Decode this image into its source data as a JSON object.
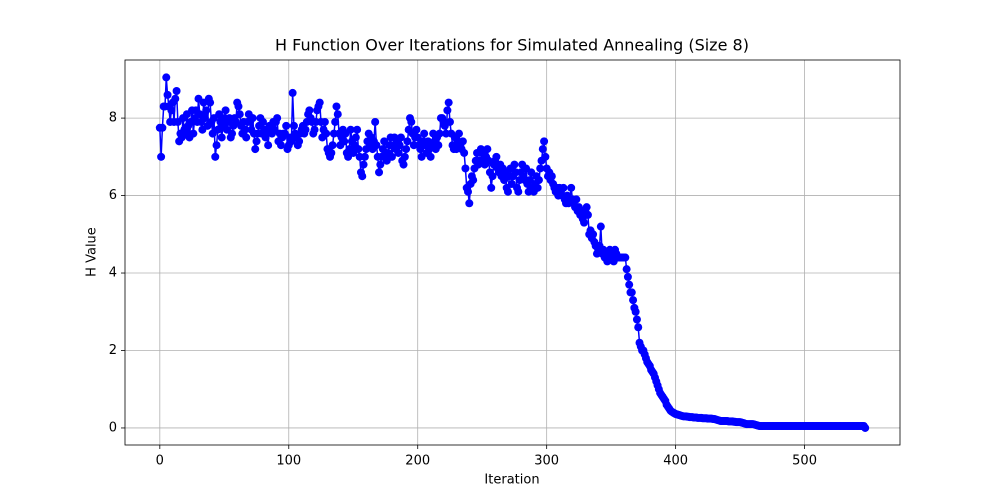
{
  "chart_data": {
    "type": "line",
    "title": "H Function Over Iterations for Simulated Annealing (Size 8)",
    "xlabel": "Iteration",
    "ylabel": "H Value",
    "xlim": [
      -27,
      574
    ],
    "ylim": [
      -0.44,
      9.5
    ],
    "xticks": [
      0,
      100,
      200,
      300,
      400,
      500
    ],
    "yticks": [
      0,
      2,
      4,
      6,
      8
    ],
    "grid": true,
    "marker": true,
    "series": [
      {
        "color": "#0000ff",
        "x": [
          0,
          1,
          2,
          3,
          4,
          5,
          6,
          7,
          8,
          9,
          10,
          11,
          12,
          13,
          14,
          15,
          16,
          17,
          18,
          19,
          20,
          21,
          22,
          23,
          24,
          25,
          26,
          27,
          28,
          29,
          30,
          31,
          32,
          33,
          34,
          35,
          36,
          37,
          38,
          39,
          40,
          41,
          42,
          43,
          44,
          45,
          46,
          47,
          48,
          49,
          50,
          51,
          52,
          53,
          54,
          55,
          56,
          57,
          58,
          59,
          60,
          61,
          62,
          63,
          64,
          65,
          66,
          67,
          68,
          69,
          70,
          71,
          72,
          73,
          74,
          75,
          76,
          77,
          78,
          79,
          80,
          81,
          82,
          83,
          84,
          85,
          86,
          87,
          88,
          89,
          90,
          91,
          92,
          93,
          94,
          95,
          96,
          97,
          98,
          99,
          100,
          101,
          102,
          103,
          104,
          105,
          106,
          107,
          108,
          109,
          110,
          111,
          112,
          113,
          114,
          115,
          116,
          117,
          118,
          119,
          120,
          121,
          122,
          123,
          124,
          125,
          126,
          127,
          128,
          129,
          130,
          131,
          132,
          133,
          134,
          135,
          136,
          137,
          138,
          139,
          140,
          141,
          142,
          143,
          144,
          145,
          146,
          147,
          148,
          149,
          150,
          151,
          152,
          153,
          154,
          155,
          156,
          157,
          158,
          159,
          160,
          161,
          162,
          163,
          164,
          165,
          166,
          167,
          168,
          169,
          170,
          171,
          172,
          173,
          174,
          175,
          176,
          177,
          178,
          179,
          180,
          181,
          182,
          183,
          184,
          185,
          186,
          187,
          188,
          189,
          190,
          191,
          192,
          193,
          194,
          195,
          196,
          197,
          198,
          199,
          200,
          201,
          202,
          203,
          204,
          205,
          206,
          207,
          208,
          209,
          210,
          211,
          212,
          213,
          214,
          215,
          216,
          217,
          218,
          219,
          220,
          221,
          222,
          223,
          224,
          225,
          226,
          227,
          228,
          229,
          230,
          231,
          232,
          233,
          234,
          235,
          236,
          237,
          238,
          239,
          240,
          241,
          242,
          243,
          244,
          245,
          246,
          247,
          248,
          249,
          250,
          251,
          252,
          253,
          254,
          255,
          256,
          257,
          258,
          259,
          260,
          261,
          262,
          263,
          264,
          265,
          266,
          267,
          268,
          269,
          270,
          271,
          272,
          273,
          274,
          275,
          276,
          277,
          278,
          279,
          280,
          281,
          282,
          283,
          284,
          285,
          286,
          287,
          288,
          289,
          290,
          291,
          292,
          293,
          294,
          295,
          296,
          297,
          298,
          299,
          300,
          301,
          302,
          303,
          304,
          305,
          306,
          307,
          308,
          309,
          310,
          311,
          312,
          313,
          314,
          315,
          316,
          317,
          318,
          319,
          320,
          321,
          322,
          323,
          324,
          325,
          326,
          327,
          328,
          329,
          330,
          331,
          332,
          333,
          334,
          335,
          336,
          337,
          338,
          339,
          340,
          341,
          342,
          343,
          344,
          345,
          346,
          347,
          348,
          349,
          350,
          351,
          352,
          353,
          354,
          355,
          356,
          357,
          358,
          359,
          360,
          361,
          362,
          363,
          364,
          365,
          366,
          367,
          368,
          369,
          370,
          371,
          372,
          373,
          374,
          375,
          376,
          377,
          378,
          379,
          380,
          381,
          382,
          383,
          384,
          385,
          386,
          387,
          388,
          389,
          390,
          391,
          392,
          393,
          394,
          395,
          396,
          397,
          398,
          399,
          400,
          401,
          402,
          403,
          404,
          405,
          406,
          407,
          408,
          409,
          410,
          411,
          412,
          413,
          414,
          415,
          416,
          417,
          418,
          419,
          420,
          421,
          422,
          423,
          424,
          425,
          426,
          427,
          428,
          429,
          430,
          431,
          432,
          433,
          434,
          435,
          436,
          437,
          438,
          439,
          440,
          441,
          442,
          443,
          444,
          445,
          446,
          447,
          448,
          449,
          450,
          451,
          452,
          453,
          454,
          455,
          456,
          457,
          458,
          459,
          460,
          461,
          462,
          463,
          464,
          465,
          466,
          467,
          468,
          469,
          470,
          471,
          472,
          473,
          474,
          475,
          476,
          477,
          478,
          479,
          480,
          481,
          482,
          483,
          484,
          485,
          486,
          487,
          488,
          489,
          490,
          491,
          492,
          493,
          494,
          495,
          496,
          497,
          498,
          499,
          500,
          501,
          502,
          503,
          504,
          505,
          506,
          507,
          508,
          509,
          510,
          511,
          512,
          513,
          514,
          515,
          516,
          517,
          518,
          519,
          520,
          521,
          522,
          523,
          524,
          525,
          526,
          527,
          528,
          529,
          530,
          531,
          532,
          533,
          534,
          535,
          536,
          537,
          538,
          539,
          540,
          541,
          542,
          543,
          544,
          545,
          546,
          547
        ],
        "values": [
          7.75,
          7.0,
          7.75,
          8.3,
          8.3,
          9.05,
          8.6,
          8.3,
          7.9,
          8.2,
          8.4,
          7.9,
          8.5,
          8.7,
          7.9,
          7.4,
          7.6,
          7.5,
          8.0,
          7.7,
          7.6,
          8.1,
          7.8,
          7.5,
          7.9,
          8.2,
          7.6,
          8.0,
          8.2,
          7.9,
          8.5,
          8.1,
          7.9,
          7.7,
          8.4,
          8.0,
          8.2,
          7.8,
          8.5,
          8.4,
          7.9,
          7.6,
          8.0,
          7.0,
          7.3,
          7.7,
          8.1,
          7.9,
          7.5,
          7.8,
          8.0,
          8.2,
          7.7,
          7.9,
          8.0,
          7.5,
          7.6,
          7.8,
          8.0,
          7.9,
          8.4,
          8.3,
          8.1,
          7.8,
          7.6,
          7.9,
          7.7,
          7.5,
          7.9,
          8.1,
          7.9,
          7.7,
          8.0,
          7.6,
          7.2,
          7.4,
          7.6,
          7.8,
          8.0,
          7.6,
          7.9,
          7.7,
          7.5,
          7.6,
          7.3,
          7.8,
          7.7,
          7.6,
          7.9,
          7.7,
          7.9,
          8.0,
          7.4,
          7.6,
          7.3,
          7.5,
          7.6,
          7.6,
          7.8,
          7.2,
          7.3,
          7.5,
          7.4,
          8.65,
          7.8,
          7.6,
          7.5,
          7.3,
          7.4,
          7.6,
          7.7,
          7.8,
          7.6,
          7.7,
          7.9,
          8.1,
          8.2,
          8.0,
          7.9,
          7.6,
          7.7,
          7.9,
          8.2,
          8.3,
          8.4,
          7.9,
          7.5,
          7.7,
          7.9,
          7.6,
          7.2,
          7.1,
          7.0,
          7.1,
          7.3,
          7.6,
          7.9,
          8.3,
          8.1,
          7.6,
          7.3,
          7.5,
          7.7,
          7.4,
          7.6,
          7.1,
          7.0,
          7.2,
          7.7,
          7.4,
          7.1,
          7.3,
          7.5,
          7.7,
          7.2,
          7.0,
          6.6,
          6.5,
          6.8,
          7.0,
          7.2,
          7.4,
          7.6,
          7.3,
          7.5,
          7.2,
          7.4,
          7.9,
          7.3,
          7.0,
          6.6,
          6.8,
          7.0,
          7.2,
          7.4,
          7.1,
          6.9,
          7.1,
          7.3,
          7.5,
          7.0,
          7.3,
          7.5,
          7.2,
          7.4,
          7.1,
          7.3,
          7.5,
          6.9,
          6.8,
          7.0,
          7.2,
          7.4,
          7.7,
          8.0,
          7.9,
          7.6,
          7.3,
          7.5,
          7.7,
          7.5,
          7.3,
          7.2,
          7.0,
          7.4,
          7.6,
          7.3,
          7.1,
          7.4,
          7.2,
          7.0,
          7.3,
          7.6,
          7.4,
          7.2,
          7.5,
          7.3,
          7.6,
          8.0,
          8.0,
          7.9,
          7.8,
          7.6,
          8.2,
          8.4,
          7.9,
          7.6,
          7.3,
          7.2,
          7.5,
          7.2,
          7.4,
          7.6,
          7.3,
          7.2,
          7.4,
          7.1,
          6.7,
          6.2,
          6.1,
          5.8,
          6.3,
          6.5,
          6.4,
          6.7,
          6.9,
          7.1,
          6.8,
          6.9,
          7.2,
          6.9,
          7.1,
          6.8,
          7.0,
          7.2,
          6.9,
          6.6,
          6.2,
          6.5,
          6.8,
          6.9,
          7.0,
          6.7,
          6.6,
          6.8,
          6.5,
          6.7,
          6.4,
          6.6,
          6.2,
          6.1,
          6.5,
          6.7,
          6.3,
          6.5,
          6.8,
          6.6,
          6.2,
          6.1,
          6.4,
          6.6,
          6.8,
          6.5,
          6.4,
          6.7,
          6.3,
          6.1,
          6.4,
          6.6,
          6.2,
          6.1,
          6.3,
          6.5,
          6.2,
          6.4,
          6.7,
          6.9,
          7.2,
          7.4,
          7.0,
          6.7,
          6.5,
          6.6,
          6.4,
          6.5,
          6.3,
          6.2,
          6.1,
          6.2,
          6.0,
          6.2,
          6.1,
          6.0,
          6.2,
          5.9,
          5.8,
          6.0,
          5.8,
          5.9,
          6.2,
          5.9,
          5.8,
          5.7,
          5.9,
          5.6,
          5.7,
          5.5,
          5.6,
          5.4,
          5.3,
          5.6,
          5.7,
          5.5,
          5.0,
          5.1,
          4.9,
          5.0,
          4.8,
          4.7,
          4.5,
          4.6,
          4.7,
          5.2,
          4.5,
          4.6,
          4.4,
          4.5,
          4.3,
          4.4,
          4.6,
          4.5,
          4.4,
          4.3,
          4.6,
          4.5,
          4.4,
          4.4,
          4.4,
          4.4,
          4.4,
          4.4,
          4.4,
          4.1,
          3.9,
          3.7,
          3.5,
          3.5,
          3.3,
          3.1,
          3.0,
          2.8,
          2.6,
          2.2,
          2.1,
          2.0,
          2.0,
          1.9,
          1.8,
          1.7,
          1.65,
          1.6,
          1.5,
          1.45,
          1.4,
          1.3,
          1.2,
          1.1,
          1.0,
          0.9,
          0.85,
          0.8,
          0.75,
          0.7,
          0.6,
          0.55,
          0.5,
          0.45,
          0.42,
          0.4,
          0.38,
          0.36,
          0.35,
          0.34,
          0.33,
          0.32,
          0.31,
          0.3,
          0.3,
          0.3,
          0.29,
          0.29,
          0.28,
          0.28,
          0.28,
          0.27,
          0.27,
          0.27,
          0.26,
          0.26,
          0.26,
          0.26,
          0.25,
          0.25,
          0.25,
          0.25,
          0.24,
          0.24,
          0.24,
          0.24,
          0.23,
          0.23,
          0.22,
          0.21,
          0.2,
          0.19,
          0.18,
          0.18,
          0.18,
          0.18,
          0.18,
          0.18,
          0.17,
          0.17,
          0.17,
          0.17,
          0.16,
          0.16,
          0.15,
          0.15,
          0.15,
          0.15,
          0.14,
          0.13,
          0.12,
          0.11,
          0.1,
          0.1,
          0.1,
          0.1,
          0.1,
          0.1,
          0.09,
          0.08,
          0.07,
          0.06,
          0.05,
          0.05,
          0.05,
          0.05,
          0.05,
          0.05,
          0.05,
          0.05,
          0.05,
          0.05,
          0.05,
          0.05,
          0.05,
          0.05,
          0.05,
          0.05,
          0.05,
          0.05,
          0.05,
          0.05,
          0.05,
          0.05,
          0.05,
          0.05,
          0.05,
          0.05,
          0.05,
          0.05,
          0.05,
          0.05,
          0.05,
          0.05,
          0.05,
          0.05,
          0.05,
          0.05,
          0.05,
          0.05,
          0.05,
          0.05,
          0.05,
          0.05,
          0.05,
          0.05,
          0.05,
          0.05,
          0.05,
          0.05,
          0.05,
          0.05,
          0.05,
          0.05,
          0.05,
          0.05,
          0.05,
          0.05,
          0.05,
          0.05,
          0.05,
          0.05,
          0.05,
          0.05,
          0.05,
          0.05,
          0.05,
          0.05,
          0.05,
          0.05,
          0.05,
          0.05,
          0.05,
          0.05,
          0.05,
          0.05,
          0.05,
          0.05,
          0.05,
          0.05,
          0.05,
          0.05,
          0.05,
          0.05,
          0.0
        ]
      }
    ]
  }
}
